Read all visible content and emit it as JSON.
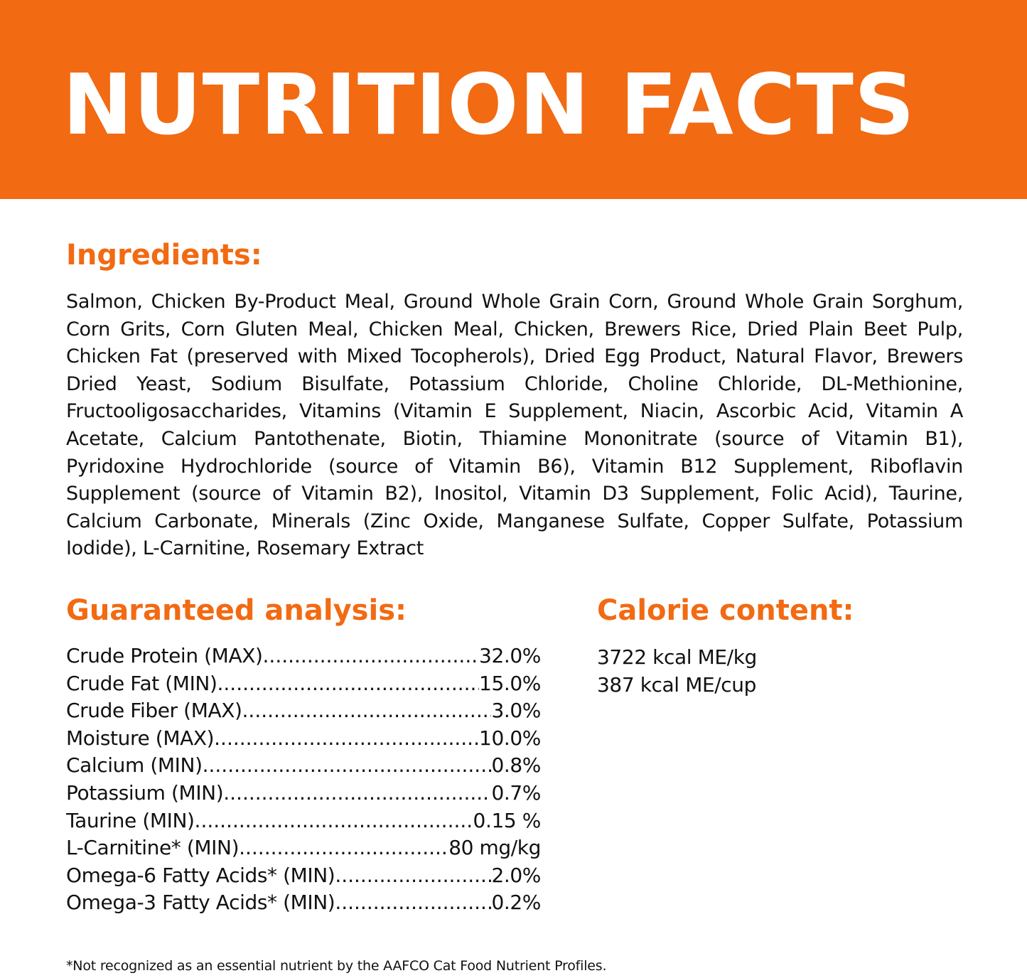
{
  "header": {
    "title": "NUTRITION FACTS",
    "color": "#F26A12"
  },
  "ingredients": {
    "heading": "Ingredients:",
    "text": "Salmon, Chicken By-Product Meal, Ground Whole Grain Corn, Ground Whole Grain Sorghum, Corn Grits, Corn Gluten Meal, Chicken Meal, Chicken, Brewers Rice, Dried Plain Beet Pulp, Chicken Fat (preserved with Mixed Tocopherols), Dried Egg Product, Natural Flavor, Brewers Dried Yeast, Sodium Bisulfate, Potassium Chloride, Choline Chloride, DL-Methionine, Fructooligosaccharides, Vitamins (Vitamin E Supplement, Niacin, Ascorbic Acid, Vitamin A Acetate, Calcium Pantothenate, Biotin, Thiamine Mononitrate (source of Vitamin B1), Pyridoxine Hydrochloride (source of Vitamin B6), Vitamin B12 Supplement, Riboflavin Supplement (source of Vitamin B2), Inositol, Vitamin D3 Supplement, Folic Acid), Taurine, Calcium Carbonate, Minerals (Zinc Oxide, Manganese Sulfate, Copper Sulfate, Potassium Iodide), L-Carnitine, Rosemary Extract"
  },
  "analysis": {
    "heading": "Guaranteed analysis:",
    "rows": [
      {
        "label": "Crude Protein (MAX)",
        "value": " 32.0%"
      },
      {
        "label": "Crude Fat (MIN)",
        "value": "15.0%"
      },
      {
        "label": "Crude Fiber (MAX)",
        "value": " 3.0%"
      },
      {
        "label": "Moisture (MAX)",
        "value": "10.0%"
      },
      {
        "label": "Calcium (MIN)",
        "value": "0.8%"
      },
      {
        "label": "Potassium (MIN)",
        "value": " 0.7%"
      },
      {
        "label": "Taurine (MIN)",
        "value": "0.15 %"
      },
      {
        "label": "L-Carnitine* (MIN)",
        "value": " 80 mg/kg"
      },
      {
        "label": "Omega-6 Fatty Acids* (MIN)",
        "value": " 2.0%"
      },
      {
        "label": "Omega-3 Fatty Acids* (MIN)",
        "value": " 0.2%"
      }
    ]
  },
  "calorie": {
    "heading": "Calorie content:",
    "lines": [
      "3722 kcal ME/kg",
      "387 kcal ME/cup"
    ]
  },
  "footnote": "*Not recognized as an essential nutrient by the AAFCO Cat Food Nutrient Profiles."
}
